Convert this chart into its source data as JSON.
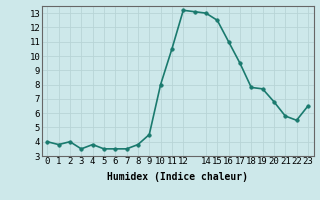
{
  "x": [
    0,
    1,
    2,
    3,
    4,
    5,
    6,
    7,
    8,
    9,
    10,
    11,
    12,
    13,
    14,
    15,
    16,
    17,
    18,
    19,
    20,
    21,
    22,
    23
  ],
  "y": [
    4.0,
    3.8,
    4.0,
    3.5,
    3.8,
    3.5,
    3.5,
    3.5,
    3.8,
    4.5,
    8.0,
    10.5,
    13.2,
    13.1,
    13.0,
    12.5,
    11.0,
    9.5,
    7.8,
    7.7,
    6.8,
    5.8,
    5.5,
    6.5
  ],
  "xlim": [
    -0.5,
    23.5
  ],
  "ylim": [
    3,
    13.5
  ],
  "yticks": [
    3,
    4,
    5,
    6,
    7,
    8,
    9,
    10,
    11,
    12,
    13
  ],
  "xticks": [
    0,
    1,
    2,
    3,
    4,
    5,
    6,
    7,
    8,
    9,
    10,
    11,
    12,
    14,
    15,
    16,
    17,
    18,
    19,
    20,
    21,
    22,
    23
  ],
  "xlabel": "Humidex (Indice chaleur)",
  "line_color": "#1a7a6e",
  "marker_color": "#1a7a6e",
  "bg_color": "#cde8ea",
  "grid_color": "#b8d4d6",
  "xlabel_fontsize": 7,
  "tick_fontsize": 6.5,
  "line_width": 1.2,
  "marker_size": 2.5
}
